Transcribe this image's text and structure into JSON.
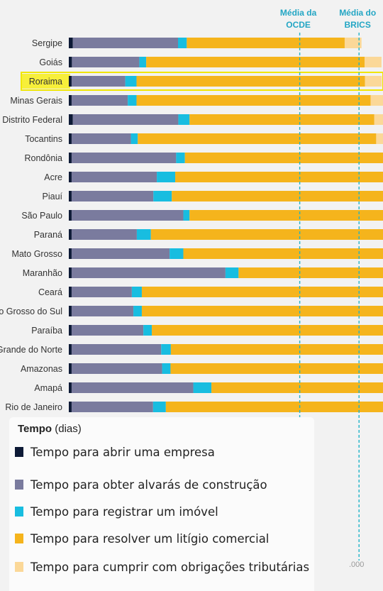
{
  "chart_data": {
    "type": "bar",
    "stacked": true,
    "orientation": "horizontal",
    "categories": [
      "Sergipe",
      "Goiás",
      "Roraima",
      "Minas Gerais",
      "Distrito Federal",
      "Tocantins",
      "Rondônia",
      "Acre",
      "Piauí",
      "São Paulo",
      "Paraná",
      "Mato Grosso",
      "Maranhão",
      "Ceará",
      "o Grosso do Sul",
      "Paraíba",
      "Grande do Norte",
      "Amazonas",
      "Amapá",
      "Rio de Janeiro"
    ],
    "highlighted_category": "Roraima",
    "series": [
      {
        "name": "Tempo para abrir uma empresa",
        "color": "#0d1a36",
        "values": [
          13,
          10,
          9,
          9,
          13,
          9,
          9,
          9,
          9,
          9,
          9,
          9,
          9,
          9,
          9,
          9,
          9,
          9,
          9,
          9
        ]
      },
      {
        "name": "Tempo para obter alvarás de construção",
        "color": "#7a7b9e",
        "values": [
          337,
          216,
          172,
          180,
          338,
          190,
          335,
          273,
          262,
          358,
          209,
          314,
          493,
          193,
          198,
          230,
          287,
          290,
          390,
          261
        ]
      },
      {
        "name": "Tempo para registrar um imóvel",
        "color": "#18bde0",
        "values": [
          28,
          22,
          36,
          28,
          36,
          22,
          28,
          59,
          59,
          20,
          45,
          44,
          42,
          32,
          27,
          27,
          31,
          27,
          58,
          41
        ]
      },
      {
        "name": "Tempo para resolver um litígio comercial",
        "color": "#f5b41c",
        "values": [
          506,
          700,
          732,
          750,
          592,
          764,
          1500,
          1500,
          1500,
          1500,
          1500,
          1500,
          1500,
          1500,
          1500,
          1500,
          1500,
          1500,
          1500,
          1500
        ]
      },
      {
        "name": "Tempo para cumprir com obrigações tributárias",
        "color": "#fbd898",
        "values": [
          54,
          54,
          54,
          54,
          54,
          54,
          0,
          0,
          0,
          0,
          0,
          0,
          0,
          0,
          0,
          0,
          0,
          0,
          0,
          0
        ]
      }
    ],
    "reference_lines": [
      {
        "label_line1": "Média da",
        "label_line2": "OCDE",
        "value": 740
      },
      {
        "label_line1": "Média do",
        "label_line2": "BRICS",
        "value": 930
      }
    ],
    "x_tick_visible": ".000",
    "legend": {
      "title_bold": "Tempo",
      "title_rest": "(dias)",
      "position": "bottom-left"
    }
  }
}
